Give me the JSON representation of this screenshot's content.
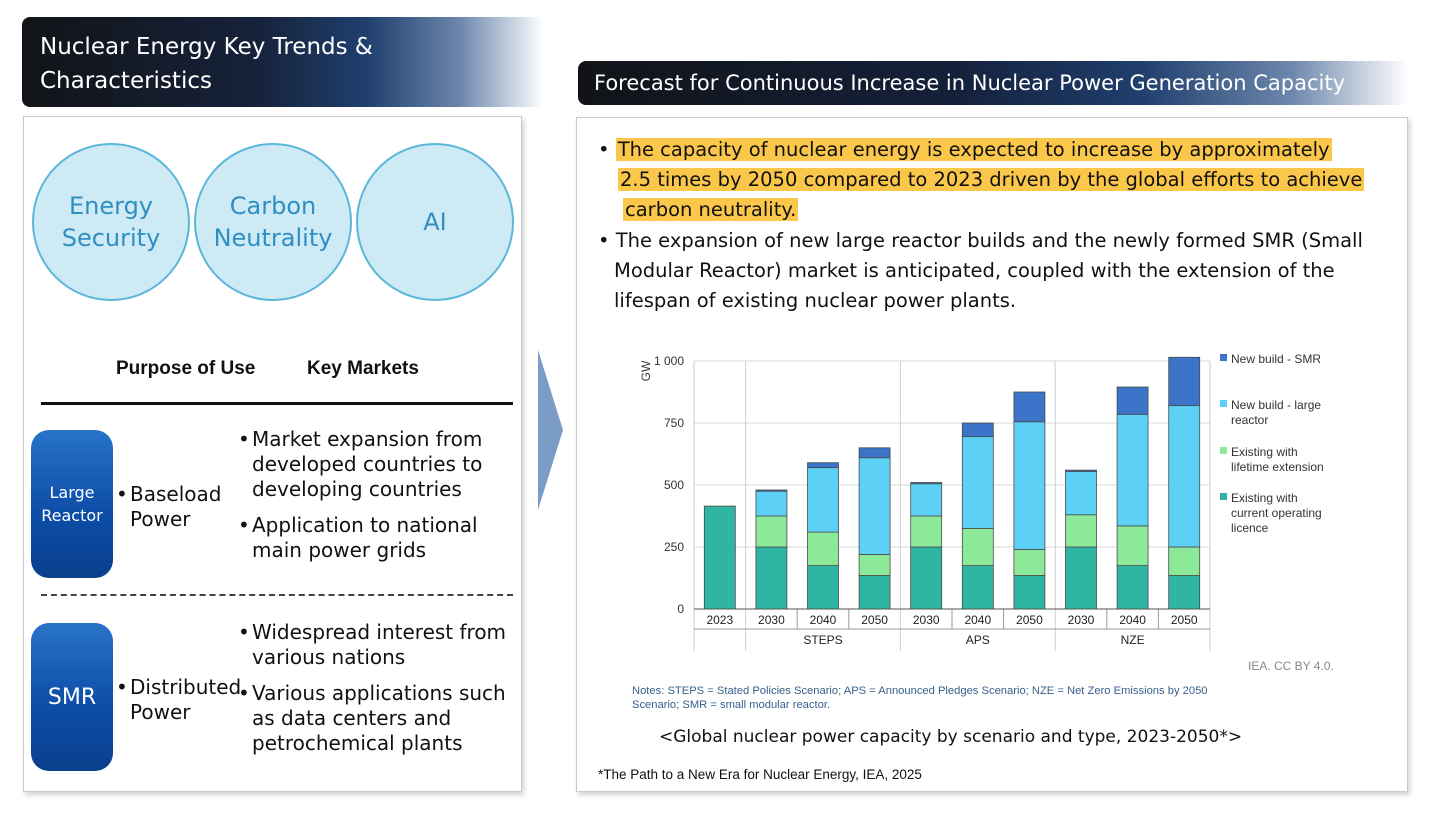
{
  "left_title": {
    "line1": "Nuclear Energy Key Trends &",
    "line2": "Characteristics"
  },
  "right_title": "Forecast for Continuous Increase in Nuclear Power Generation Capacity",
  "circles": [
    {
      "line1": "Energy",
      "line2": "Security"
    },
    {
      "line1": "Carbon",
      "line2": "Neutrality"
    },
    {
      "line1": "AI",
      "line2": ""
    }
  ],
  "columns": {
    "purpose": "Purpose of Use",
    "markets": "Key Markets"
  },
  "large_reactor": {
    "badge_line1": "Large",
    "badge_line2": "Reactor",
    "purpose_line1": "Baseload",
    "purpose_line2": "Power",
    "markets": [
      [
        "Market expansion from",
        "developed countries to",
        "developing countries"
      ],
      [
        "Application to national",
        "main power grids"
      ]
    ]
  },
  "smr": {
    "badge": "SMR",
    "purpose_line1": "Distributed",
    "purpose_line2": "Power",
    "markets": [
      [
        "Widespread interest from",
        "various nations"
      ],
      [
        "Various applications such",
        "as data centers and",
        "petrochemical plants"
      ]
    ]
  },
  "bullets": {
    "b1": [
      "The capacity of nuclear energy is expected to increase by approximately",
      "2.5 times by 2050 compared to 2023 driven by the global efforts to achieve",
      "carbon neutrality."
    ],
    "b2": [
      "The expansion of new large reactor builds and the newly formed SMR (Small",
      "Modular Reactor) market is anticipated, coupled with the extension of the",
      "lifespan of existing nuclear power plants."
    ]
  },
  "chart_data": {
    "type": "bar",
    "stacked": true,
    "ylabel": "GW",
    "ylim": [
      0,
      1000
    ],
    "yticks": [
      0,
      250,
      500,
      750,
      1000
    ],
    "ytick_labels": [
      "0",
      "250",
      "500",
      "750",
      "1 000"
    ],
    "categories": [
      "2023",
      "2030",
      "2040",
      "2050",
      "2030",
      "2040",
      "2050",
      "2030",
      "2040",
      "2050"
    ],
    "groups": [
      {
        "label": "STEPS",
        "categories": [
          "2030",
          "2040",
          "2050"
        ]
      },
      {
        "label": "APS",
        "categories": [
          "2030",
          "2040",
          "2050"
        ]
      },
      {
        "label": "NZE",
        "categories": [
          "2030",
          "2040",
          "2050"
        ]
      }
    ],
    "series": [
      {
        "name": "Existing with current operating licence",
        "color": "#2fb5a2",
        "values": [
          415,
          250,
          175,
          135,
          250,
          175,
          135,
          250,
          175,
          135
        ]
      },
      {
        "name": "Existing with lifetime extension",
        "color": "#8de99a",
        "values": [
          0,
          125,
          135,
          85,
          125,
          150,
          105,
          130,
          160,
          115
        ]
      },
      {
        "name": "New build - large reactor",
        "color": "#5dd0f5",
        "values": [
          0,
          100,
          260,
          390,
          130,
          370,
          515,
          175,
          450,
          570
        ]
      },
      {
        "name": "New build - SMR",
        "color": "#3b74c8",
        "values": [
          0,
          5,
          20,
          40,
          5,
          55,
          120,
          5,
          110,
          195
        ]
      }
    ],
    "legend_order": [
      {
        "line1": "New build - SMR",
        "line2": "",
        "line3": ""
      },
      {
        "line1": "New build - large",
        "line2": "reactor",
        "line3": ""
      },
      {
        "line1": "Existing with",
        "line2": "lifetime extension",
        "line3": ""
      },
      {
        "line1": "Existing with",
        "line2": "current operating",
        "line3": "licence"
      }
    ],
    "legend_colors": [
      "#3b74c8",
      "#5dd0f5",
      "#8de99a",
      "#2fb5a2"
    ],
    "legend_position": "right",
    "credit": "IEA. CC BY 4.0."
  },
  "notes": {
    "line1": "Notes: STEPS = Stated Policies Scenario; APS = Announced Pledges Scenario; NZE = Net Zero Emissions by 2050",
    "line2": "Scenario; SMR = small modular reactor."
  },
  "caption": "<Global nuclear power capacity by scenario and type, 2023-2050*>",
  "source": "*The Path to a New Era for Nuclear Energy, IEA, 2025"
}
